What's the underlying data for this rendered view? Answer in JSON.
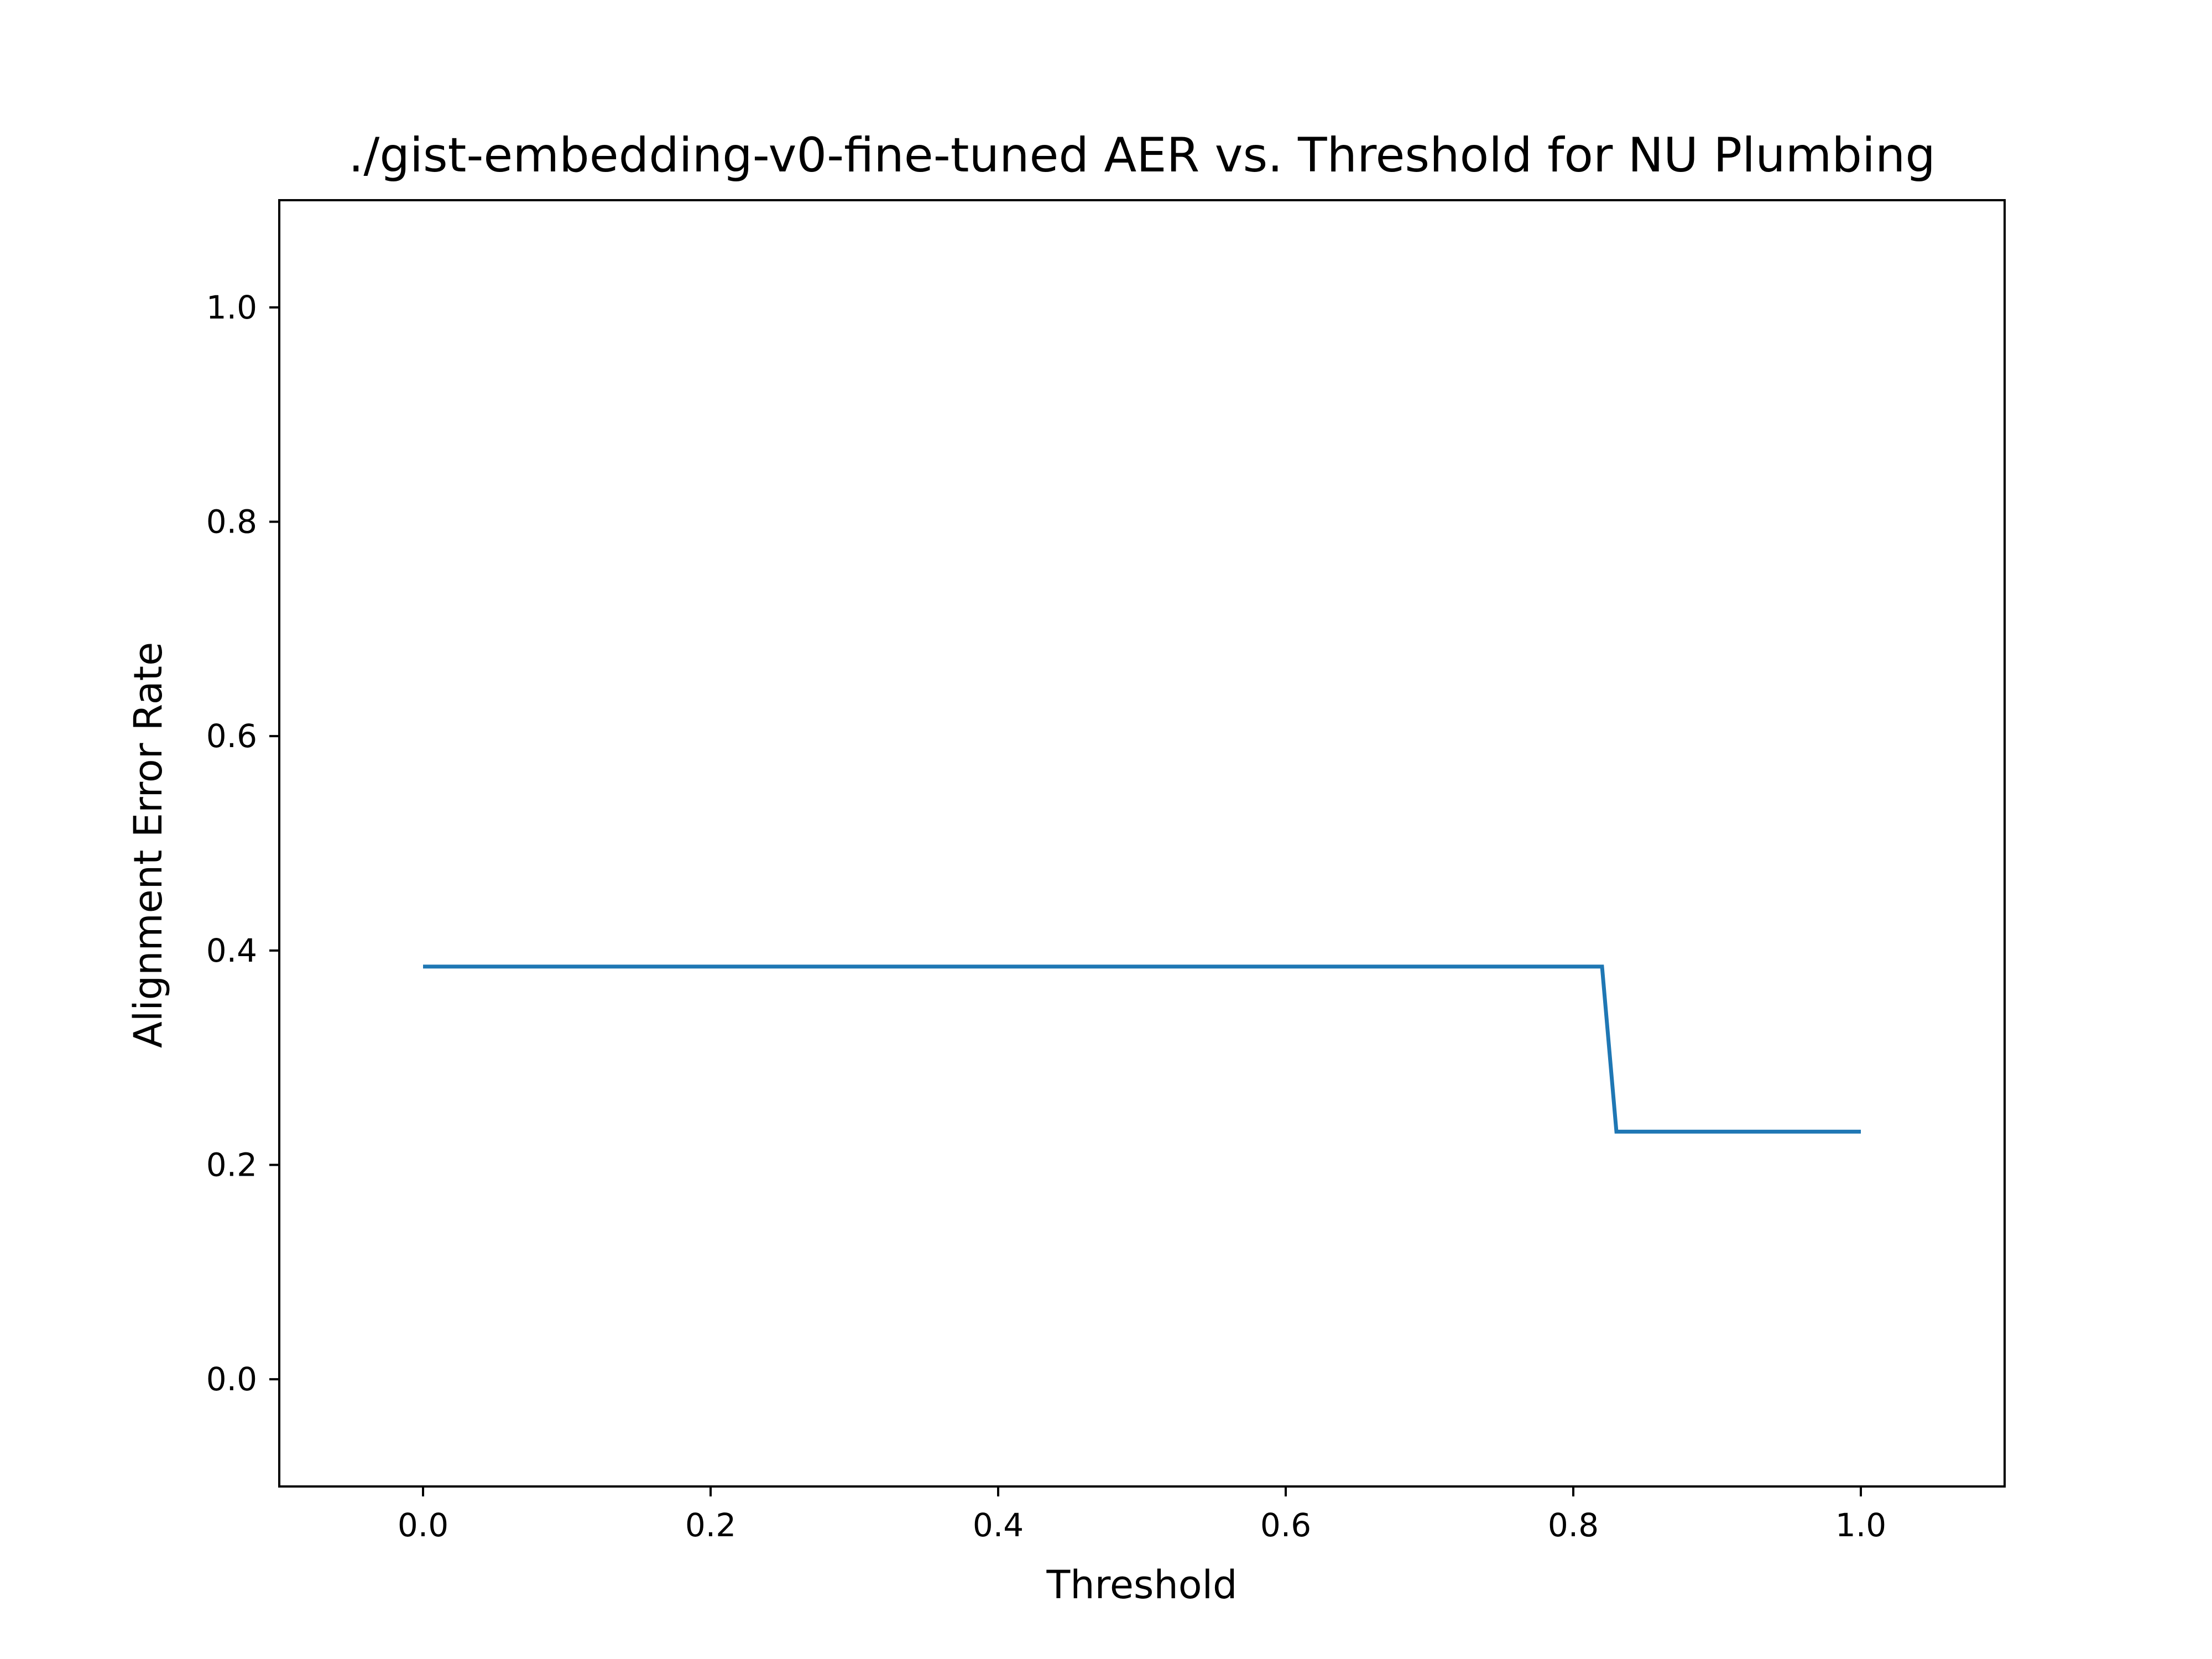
{
  "chart_data": {
    "type": "line",
    "title": "./gist-embedding-v0-fine-tuned AER vs. Threshold for NU Plumbing",
    "xlabel": "Threshold",
    "ylabel": "Alignment Error Rate",
    "xlim": [
      -0.1,
      1.1
    ],
    "ylim": [
      -0.1,
      1.1
    ],
    "x_ticks": [
      0.0,
      0.2,
      0.4,
      0.6,
      0.8,
      1.0
    ],
    "x_tick_labels": [
      "0.0",
      "0.2",
      "0.4",
      "0.6",
      "0.8",
      "1.0"
    ],
    "y_ticks": [
      0.0,
      0.2,
      0.4,
      0.6,
      0.8,
      1.0
    ],
    "y_tick_labels": [
      "0.0",
      "0.2",
      "0.4",
      "0.6",
      "0.8",
      "1.0"
    ],
    "grid": false,
    "series": [
      {
        "color": "#1f77b4",
        "x": [
          0.0,
          0.1,
          0.2,
          0.3,
          0.4,
          0.5,
          0.6,
          0.7,
          0.8,
          0.82,
          0.83,
          0.9,
          1.0
        ],
        "y": [
          0.385,
          0.385,
          0.385,
          0.385,
          0.385,
          0.385,
          0.385,
          0.385,
          0.385,
          0.385,
          0.231,
          0.231,
          0.231
        ]
      }
    ]
  }
}
